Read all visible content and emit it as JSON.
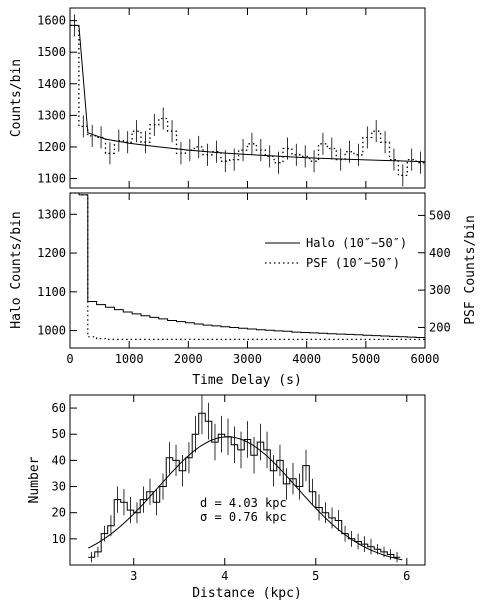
{
  "chart_data": [
    {
      "panel": "top",
      "type": "step",
      "xlabel": "",
      "ylabel": "Counts/bin",
      "xlim": [
        0,
        6000
      ],
      "ylim": [
        1070,
        1640
      ],
      "yticks": [
        1100,
        1200,
        1300,
        1400,
        1500,
        1600
      ],
      "ytick_labels": [
        "1100",
        "1200",
        "1300",
        "1400",
        "1500",
        "1600"
      ],
      "bin_width": 150,
      "data_bins": {
        "x_start": [
          0,
          150,
          300,
          450,
          600,
          750,
          900,
          1050,
          1200,
          1350,
          1500,
          1650,
          1800,
          1950,
          2100,
          2250,
          2400,
          2550,
          2700,
          2850,
          3000,
          3150,
          3300,
          3450,
          3600,
          3750,
          3900,
          4050,
          4200,
          4350,
          4500,
          4650,
          4800,
          4950,
          5100,
          5250,
          5400,
          5550,
          5700,
          5850
        ],
        "y": [
          1585,
          1265,
          1235,
          1230,
          1180,
          1220,
          1215,
          1250,
          1215,
          1270,
          1290,
          1250,
          1180,
          1190,
          1200,
          1175,
          1185,
          1155,
          1160,
          1190,
          1210,
          1190,
          1170,
          1150,
          1195,
          1175,
          1170,
          1155,
          1210,
          1195,
          1160,
          1185,
          1175,
          1230,
          1250,
          1215,
          1160,
          1110,
          1160,
          1150
        ],
        "err": [
          35,
          35,
          35,
          35,
          35,
          35,
          35,
          35,
          35,
          35,
          35,
          35,
          35,
          35,
          35,
          35,
          35,
          35,
          35,
          35,
          35,
          35,
          35,
          35,
          35,
          35,
          35,
          35,
          35,
          35,
          35,
          35,
          35,
          35,
          35,
          35,
          35,
          35,
          35,
          35
        ]
      },
      "model_curve": {
        "x": [
          150,
          300,
          600,
          1000,
          1500,
          2000,
          2500,
          3000,
          3500,
          4000,
          4500,
          5000,
          5500,
          6000
        ],
        "y": [
          1585,
          1245,
          1225,
          1212,
          1200,
          1190,
          1182,
          1176,
          1171,
          1166,
          1162,
          1159,
          1156,
          1153
        ]
      }
    },
    {
      "panel": "middle",
      "type": "step",
      "xlabel": "Time Delay (s)",
      "ylabel": "Halo Counts/bin",
      "ylabel_right": "PSF Counts/bin",
      "xlim": [
        0,
        6000
      ],
      "xticks": [
        0,
        1000,
        2000,
        3000,
        4000,
        5000,
        6000
      ],
      "xtick_labels": [
        "0",
        "1000",
        "2000",
        "3000",
        "4000",
        "5000",
        "6000"
      ],
      "ylim": [
        955,
        1355
      ],
      "yticks": [
        1000,
        1100,
        1200,
        1300
      ],
      "ytick_labels": [
        "1000",
        "1100",
        "1200",
        "1300"
      ],
      "ylim_right": [
        145,
        560
      ],
      "yticks_right": [
        200,
        300,
        400,
        500
      ],
      "ytick_labels_right": [
        "200",
        "300",
        "400",
        "500"
      ],
      "legend": {
        "placement": "center-right",
        "entries": [
          {
            "label": "Halo (10″−50″)",
            "style": "solid"
          },
          {
            "label": "PSF (10″−50″)",
            "style": "dotted"
          }
        ]
      },
      "series": [
        {
          "name": "Halo (10″−50″)",
          "style": "solid",
          "axis": "left",
          "x_start": [
            150,
            300,
            450,
            600,
            750,
            900,
            1050,
            1200,
            1350,
            1500,
            1650,
            1800,
            1950,
            2100,
            2250,
            2400,
            2550,
            2700,
            2850,
            3000,
            3150,
            3300,
            3450,
            3600,
            3750,
            3900,
            4050,
            4200,
            4350,
            4500,
            4650,
            4800,
            4950,
            5100,
            5250,
            5400,
            5550,
            5700,
            5850
          ],
          "y": [
            1350,
            1075,
            1067,
            1060,
            1054,
            1048,
            1043,
            1038,
            1034,
            1030,
            1026,
            1023,
            1020,
            1017,
            1014,
            1012,
            1010,
            1008,
            1006,
            1004,
            1002,
            1001,
            999,
            998,
            996,
            995,
            994,
            993,
            992,
            991,
            990,
            989,
            988,
            987,
            986,
            985,
            984,
            983,
            982
          ]
        },
        {
          "name": "PSF (10″−50″)",
          "style": "dotted",
          "axis": "right",
          "x_start": [
            0,
            150,
            300,
            450,
            600,
            1000,
            2000,
            3000,
            4000,
            5000
          ],
          "y": [
            560,
            555,
            175,
            170,
            168,
            168,
            168,
            168,
            168,
            168
          ]
        }
      ]
    },
    {
      "panel": "bottom",
      "type": "histogram",
      "xlabel": "Distance (kpc)",
      "ylabel": "Number",
      "xlim": [
        2.3,
        6.2
      ],
      "xticks": [
        3,
        4,
        5,
        6
      ],
      "xtick_labels": [
        "3",
        "4",
        "5",
        "6"
      ],
      "ylim": [
        0,
        65
      ],
      "yticks": [
        10,
        20,
        30,
        40,
        50,
        60
      ],
      "ytick_labels": [
        "10",
        "20",
        "30",
        "40",
        "50",
        "60"
      ],
      "annotations": [
        "d = 4.03 kpc",
        "σ = 0.76 kpc"
      ],
      "bin_width": 0.0714,
      "bins_x_start": [
        2.5,
        2.571,
        2.643,
        2.714,
        2.786,
        2.857,
        2.929,
        3.0,
        3.071,
        3.143,
        3.214,
        3.286,
        3.357,
        3.429,
        3.5,
        3.571,
        3.643,
        3.714,
        3.786,
        3.857,
        3.929,
        4.0,
        4.071,
        4.143,
        4.214,
        4.286,
        4.357,
        4.429,
        4.5,
        4.571,
        4.643,
        4.714,
        4.786,
        4.857,
        4.929,
        5.0,
        5.071,
        5.143,
        5.214,
        5.286,
        5.357,
        5.429,
        5.5,
        5.571,
        5.643,
        5.714,
        5.786,
        5.857
      ],
      "counts": [
        3,
        5,
        12,
        15,
        25,
        24,
        21,
        20,
        25,
        28,
        24,
        30,
        41,
        40,
        36,
        41,
        50,
        58,
        55,
        47,
        50,
        49,
        46,
        44,
        48,
        42,
        47,
        44,
        36,
        40,
        31,
        33,
        30,
        38,
        28,
        22,
        20,
        18,
        17,
        12,
        10,
        9,
        8,
        7,
        6,
        5,
        4,
        3
      ],
      "err": [
        2,
        2,
        3,
        4,
        5,
        5,
        5,
        4,
        5,
        5,
        5,
        5,
        6,
        6,
        6,
        6,
        7,
        8,
        7,
        7,
        7,
        7,
        7,
        7,
        7,
        7,
        7,
        7,
        6,
        6,
        6,
        6,
        5,
        6,
        5,
        5,
        4,
        4,
        4,
        3,
        3,
        3,
        3,
        3,
        2,
        2,
        2,
        2
      ],
      "gaussian_fit": {
        "mean": 4.03,
        "sigma": 0.76,
        "amplitude": 49
      }
    }
  ]
}
